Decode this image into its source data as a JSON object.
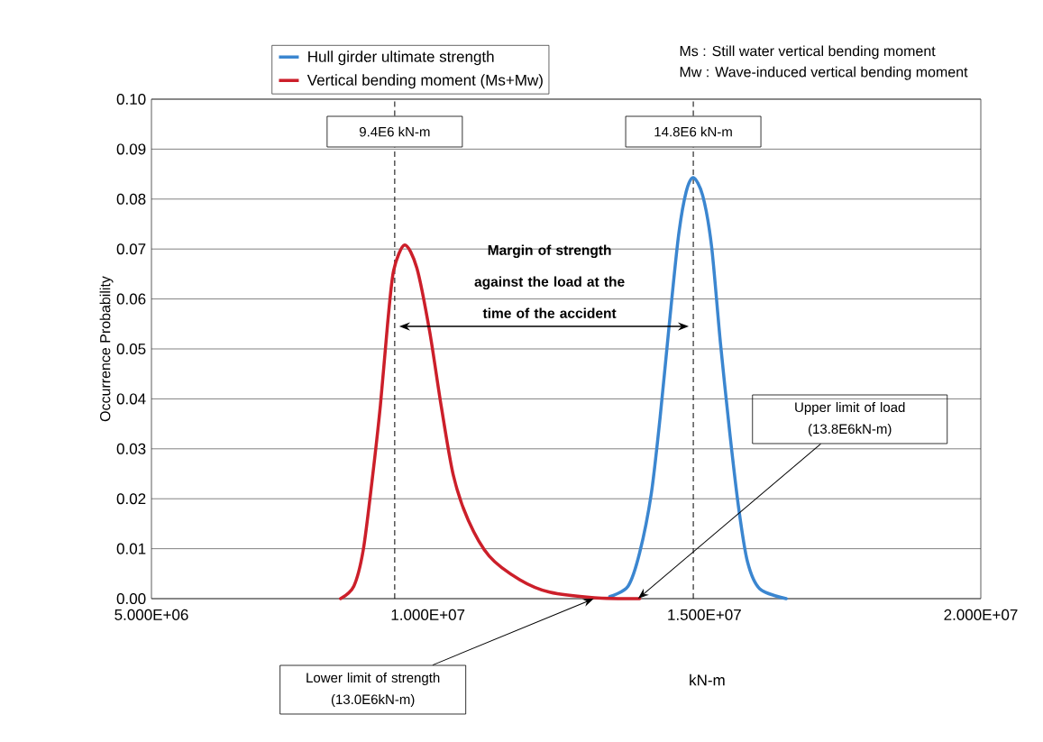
{
  "chart_data": {
    "type": "line",
    "xlabel": "kN-m",
    "ylabel": "Occurrence Probability",
    "xlim": [
      5000000,
      20000000
    ],
    "xticks": [
      {
        "value": 5000000,
        "label": "5.000E+06"
      },
      {
        "value": 10000000,
        "label": "1.000E+07"
      },
      {
        "value": 15000000,
        "label": "1.500E+07"
      },
      {
        "value": 20000000,
        "label": "2.000E+07"
      }
    ],
    "ylim": [
      0,
      0.1
    ],
    "yticks": [
      {
        "value": 0,
        "label": "0.00"
      },
      {
        "value": 0.01,
        "label": "0.01"
      },
      {
        "value": 0.02,
        "label": "0.02"
      },
      {
        "value": 0.03,
        "label": "0.03"
      },
      {
        "value": 0.04,
        "label": "0.04"
      },
      {
        "value": 0.05,
        "label": "0.05"
      },
      {
        "value": 0.06,
        "label": "0.06"
      },
      {
        "value": 0.07,
        "label": "0.07"
      },
      {
        "value": 0.08,
        "label": "0.08"
      },
      {
        "value": 0.09,
        "label": "0.09"
      },
      {
        "value": 0.1,
        "label": "0.10"
      }
    ],
    "grid": "y",
    "legend": "top left",
    "series": [
      {
        "name": "Hull girder ultimate strength",
        "color": "#3b86d0",
        "x": [
          13290000,
          13620000,
          13830000,
          14040000,
          14200000,
          14360000,
          14530000,
          14670000,
          14800000,
          14970000,
          15130000,
          15290000,
          15460000,
          15620000,
          15780000,
          16000000,
          16480000
        ],
        "values": [
          0.0004,
          0.0025,
          0.0092,
          0.021,
          0.0363,
          0.0543,
          0.0724,
          0.0814,
          0.0843,
          0.0807,
          0.0706,
          0.0513,
          0.0332,
          0.0182,
          0.0074,
          0.002,
          0
        ]
      },
      {
        "name": "Vertical bending moment (Ms+Mw)",
        "color": "#cc1f2a",
        "x": [
          8420000,
          8660000,
          8830000,
          8990000,
          9140000,
          9270000,
          9380000,
          9580000,
          9800000,
          10030000,
          10240000,
          10460000,
          10730000,
          11110000,
          11660000,
          12200000,
          13010000,
          13830000
        ],
        "values": [
          0,
          0.0025,
          0.0097,
          0.0236,
          0.0386,
          0.0549,
          0.0657,
          0.0708,
          0.0662,
          0.0536,
          0.0386,
          0.0247,
          0.0157,
          0.0085,
          0.0038,
          0.0013,
          0.0002,
          0
        ]
      }
    ],
    "ref_lines": [
      {
        "axis": "x",
        "value": 9400000,
        "label": "9.4E6 kN-m",
        "line_style": "dashed"
      },
      {
        "axis": "x",
        "value": 14800000,
        "label": "14.8E6 kN-m",
        "line_style": "dashed"
      }
    ],
    "annotations": [
      "Margin of strength against the load at the time of the accident",
      "Ms : Still water vertical bending moment",
      "Mw : Wave-induced vertical bending moment",
      {
        "text": "Lower limit of strength (13.0E6kN-m)",
        "x": 13000000,
        "y": 0
      },
      {
        "text": "Upper limit of load (13.8E6kN-m)",
        "x": 13800000,
        "y": 0
      }
    ]
  }
}
